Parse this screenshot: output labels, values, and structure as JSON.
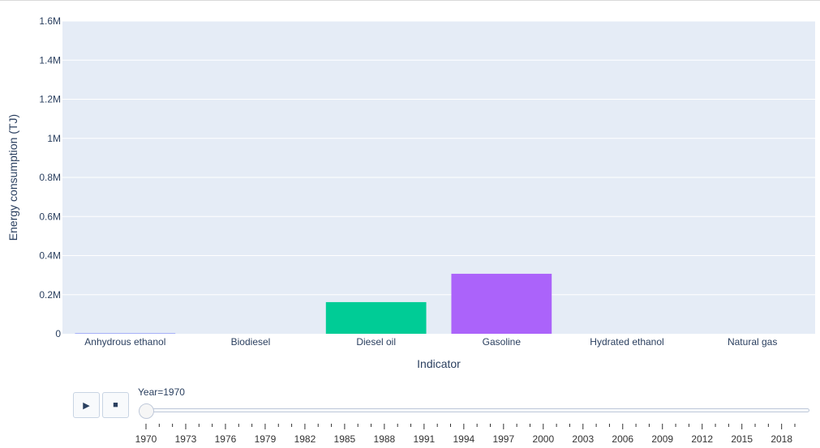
{
  "chart_data": {
    "type": "bar",
    "xlabel": "Indicator",
    "ylabel": "Energy consumption (TJ)",
    "categories": [
      "Anhydrous ethanol",
      "Biodiesel",
      "Diesel oil",
      "Gasoline",
      "Hydrated ethanol",
      "Natural gas"
    ],
    "values": [
      2000,
      0,
      162000,
      307000,
      0,
      0
    ],
    "colors": [
      "#636efa",
      "#ef553b",
      "#00cc96",
      "#ab63fa",
      "#ffa15a",
      "#19d3f3"
    ],
    "ylim": [
      0,
      1600000
    ],
    "yticks": [
      {
        "value": 0,
        "label": "0"
      },
      {
        "value": 200000,
        "label": "0.2M"
      },
      {
        "value": 400000,
        "label": "0.4M"
      },
      {
        "value": 600000,
        "label": "0.6M"
      },
      {
        "value": 800000,
        "label": "0.8M"
      },
      {
        "value": 1000000,
        "label": "1M"
      },
      {
        "value": 1200000,
        "label": "1.2M"
      },
      {
        "value": 1400000,
        "label": "1.4M"
      },
      {
        "value": 1600000,
        "label": "1.6M"
      }
    ],
    "grid": true,
    "plot_background": "#e5ecf6"
  },
  "animation": {
    "play_icon": "play-icon",
    "stop_icon": "stop-icon",
    "play_glyph": "▶",
    "stop_glyph": "■",
    "slider_label": "Year=1970",
    "current_year": 1970,
    "year_range": [
      1970,
      2019
    ],
    "tick_labels": [
      "1970",
      "1973",
      "1976",
      "1979",
      "1982",
      "1985",
      "1988",
      "1991",
      "1994",
      "1997",
      "2000",
      "2003",
      "2006",
      "2009",
      "2012",
      "2015",
      "2018"
    ]
  },
  "colors": {
    "axis_text": "#2a3f5f",
    "grid": "#ffffff"
  }
}
